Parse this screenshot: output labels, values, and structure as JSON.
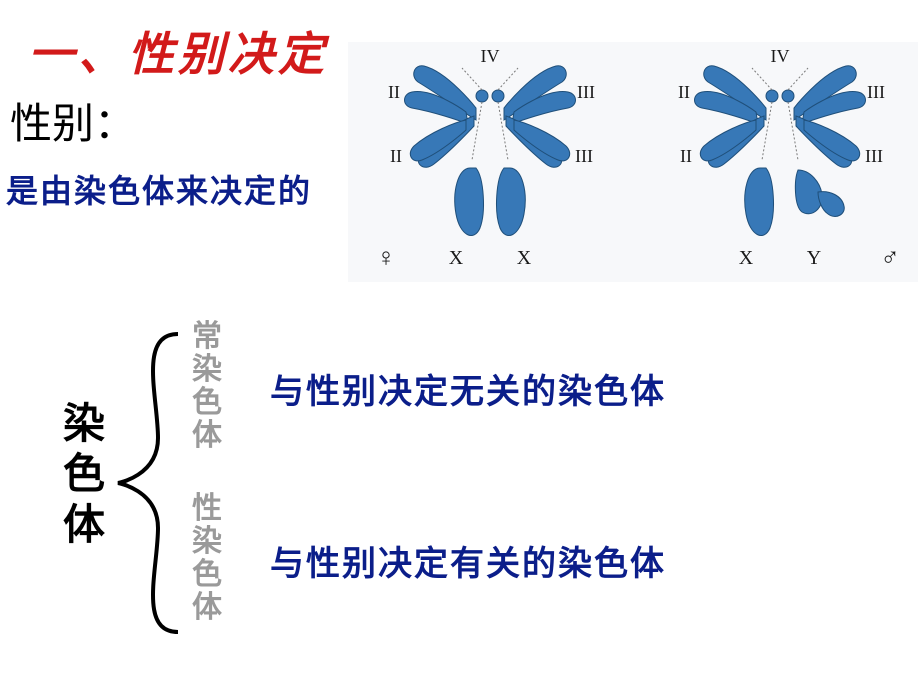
{
  "heading": "一、性别决定",
  "subheading": "性别：",
  "line1": "是由染色体来决定的",
  "diagram": {
    "bg": "#f7f8fa",
    "chrom_fill": "#3778b7",
    "chrom_stroke": "#1f4f7a",
    "label_color": "#1a1a1a",
    "dotted_color": "#7a7a7a",
    "left": {
      "top_label": "IV",
      "left_top": "II",
      "right_top": "III",
      "left_bot": "II",
      "right_bot": "III",
      "bot_left": "X",
      "bot_right": "X",
      "symbol": "♀"
    },
    "right": {
      "top_label": "IV",
      "left_top": "II",
      "right_top": "III",
      "left_bot": "II",
      "right_bot": "III",
      "bot_left": "X",
      "bot_right": "Y",
      "symbol": "♂"
    }
  },
  "bracket": {
    "main": "染色体",
    "sub1": "常染色体",
    "sub2": "性染色体",
    "desc1": "与性别决定无关的染色体",
    "desc2": "与性别决定有关的染色体"
  },
  "style": {
    "heading_color": "#d21a1a",
    "blue": "#0b1e8a",
    "gray": "#9a9a9a",
    "brace_color": "#000000"
  }
}
